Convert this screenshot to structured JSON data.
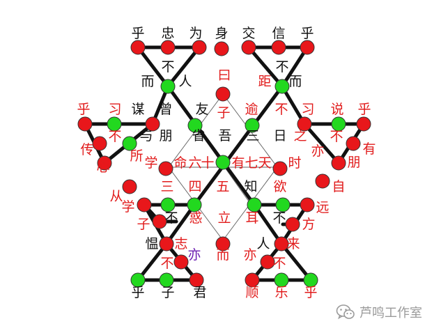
{
  "colors": {
    "red_node": "#e8171b",
    "green_node": "#22d81f",
    "node_stroke": "#333333",
    "thick_edge": "#111111",
    "thin_edge": "#666666",
    "black_text": "#111111",
    "red_text": "#e11b1b",
    "purple_text": "#6a1bb0",
    "watermark": "#9a9a9a"
  },
  "labels": [
    {
      "t": "乎",
      "c": "k"
    },
    {
      "t": "忠",
      "c": "k"
    },
    {
      "t": "为",
      "c": "k"
    },
    {
      "t": "身",
      "c": "k"
    },
    {
      "t": "交",
      "c": "k"
    },
    {
      "t": "信",
      "c": "k"
    },
    {
      "t": "乎",
      "c": "k"
    },
    {
      "t": "不",
      "c": "k"
    },
    {
      "t": "而",
      "c": "k"
    },
    {
      "t": "人",
      "c": "k"
    },
    {
      "t": "曰",
      "c": "r"
    },
    {
      "t": "子",
      "c": "r"
    },
    {
      "t": "不",
      "c": "k"
    },
    {
      "t": "距",
      "c": "r"
    },
    {
      "t": "而",
      "c": "k"
    },
    {
      "t": "乎",
      "c": "r"
    },
    {
      "t": "习",
      "c": "r"
    },
    {
      "t": "谋",
      "c": "k"
    },
    {
      "t": "曾",
      "c": "k"
    },
    {
      "t": "友",
      "c": "k"
    },
    {
      "t": "逾",
      "c": "r"
    },
    {
      "t": "不",
      "c": "r"
    },
    {
      "t": "习",
      "c": "r"
    },
    {
      "t": "说",
      "c": "r"
    },
    {
      "t": "乎",
      "c": "r"
    },
    {
      "t": "不",
      "c": "r"
    },
    {
      "t": "与",
      "c": "k"
    },
    {
      "t": "朋",
      "c": "k"
    },
    {
      "t": "省",
      "c": "k"
    },
    {
      "t": "吾",
      "c": "k"
    },
    {
      "t": "三",
      "c": "k"
    },
    {
      "t": "日",
      "c": "k"
    },
    {
      "t": "之",
      "c": "r"
    },
    {
      "t": "不",
      "c": "r"
    },
    {
      "t": "传",
      "c": "r"
    },
    {
      "t": "所",
      "c": "r"
    },
    {
      "t": "亦",
      "c": "r"
    },
    {
      "t": "有",
      "c": "r"
    },
    {
      "t": "学",
      "c": "r"
    },
    {
      "t": "命",
      "c": "r"
    },
    {
      "t": "六",
      "c": "r"
    },
    {
      "t": "十",
      "c": "r"
    },
    {
      "t": "有",
      "c": "r"
    },
    {
      "t": "七",
      "c": "r"
    },
    {
      "t": "天",
      "c": "r"
    },
    {
      "t": "时",
      "c": "r"
    },
    {
      "t": "心",
      "c": "r"
    },
    {
      "t": "朋",
      "c": "r"
    },
    {
      "t": "三",
      "c": "r"
    },
    {
      "t": "四",
      "c": "r"
    },
    {
      "t": "五",
      "c": "r"
    },
    {
      "t": "知",
      "c": "k"
    },
    {
      "t": "欲",
      "c": "r"
    },
    {
      "t": "自",
      "c": "r"
    },
    {
      "t": "从",
      "c": "r"
    },
    {
      "t": "学",
      "c": "r"
    },
    {
      "t": "远",
      "c": "r"
    },
    {
      "t": "不",
      "c": "k"
    },
    {
      "t": "子",
      "c": "r"
    },
    {
      "t": "惑",
      "c": "r"
    },
    {
      "t": "立",
      "c": "r"
    },
    {
      "t": "耳",
      "c": "r"
    },
    {
      "t": "不",
      "c": "k"
    },
    {
      "t": "方",
      "c": "r"
    },
    {
      "t": "愠",
      "c": "k"
    },
    {
      "t": "志",
      "c": "r"
    },
    {
      "t": "人",
      "c": "k"
    },
    {
      "t": "来",
      "c": "r"
    },
    {
      "t": "不",
      "c": "r"
    },
    {
      "t": "亦",
      "c": "p"
    },
    {
      "t": "而",
      "c": "r"
    },
    {
      "t": "亦",
      "c": "r"
    },
    {
      "t": "不",
      "c": "r"
    },
    {
      "t": "乎",
      "c": "k"
    },
    {
      "t": "子",
      "c": "k"
    },
    {
      "t": "君",
      "c": "k"
    },
    {
      "t": "顺",
      "c": "r"
    },
    {
      "t": "乐",
      "c": "r"
    },
    {
      "t": "乎",
      "c": "r"
    }
  ],
  "watermark": {
    "text": "芦鸣工作室",
    "icon": "wechat-icon"
  }
}
